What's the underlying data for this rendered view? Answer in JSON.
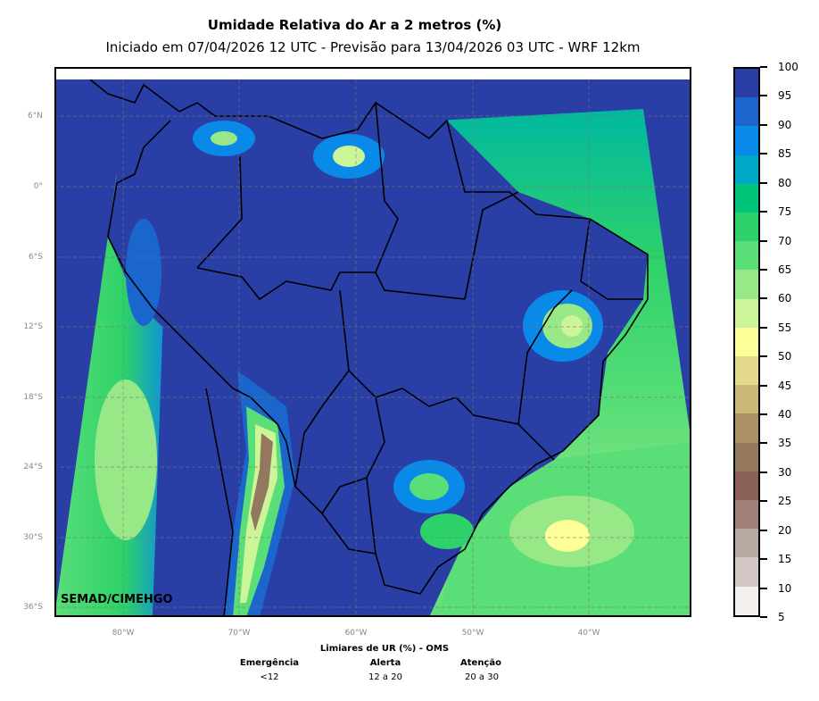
{
  "title": "Umidade Relativa do Ar a 2 metros (%)",
  "subtitle": "Iniciado em 07/04/2026 12 UTC - Previsão para 13/04/2026 03 UTC - WRF 12km",
  "watermark": "SEMAD/CIMEHGO",
  "lat_labels": [
    "6°N",
    "0°",
    "6°S",
    "12°S",
    "18°S",
    "24°S",
    "30°S",
    "36°S"
  ],
  "lon_labels": [
    "80°W",
    "70°W",
    "60°W",
    "50°W",
    "40°W"
  ],
  "colorbar": {
    "labels": [
      "100",
      "95",
      "90",
      "85",
      "80",
      "75",
      "70",
      "65",
      "60",
      "55",
      "50",
      "45",
      "40",
      "35",
      "30",
      "25",
      "20",
      "15",
      "10",
      "5"
    ],
    "colors": [
      "#2a3fa5",
      "#1a66cc",
      "#0a8ae8",
      "#00a8c8",
      "#00c47a",
      "#2ed26a",
      "#5ade78",
      "#98e888",
      "#ccf59a",
      "#ffff99",
      "#e4da8c",
      "#cab878",
      "#ab9068",
      "#94785e",
      "#8a6058",
      "#a08078",
      "#b8a8a2",
      "#d4c8c6",
      "#f4f0ee"
    ]
  },
  "legend": {
    "title": "Limiares de UR (%) - OMS",
    "items": [
      {
        "label": "Emergência",
        "value": "<12"
      },
      {
        "label": "Alerta",
        "value": "12 a 20"
      },
      {
        "label": "Atenção",
        "value": "20 a 30"
      }
    ]
  }
}
